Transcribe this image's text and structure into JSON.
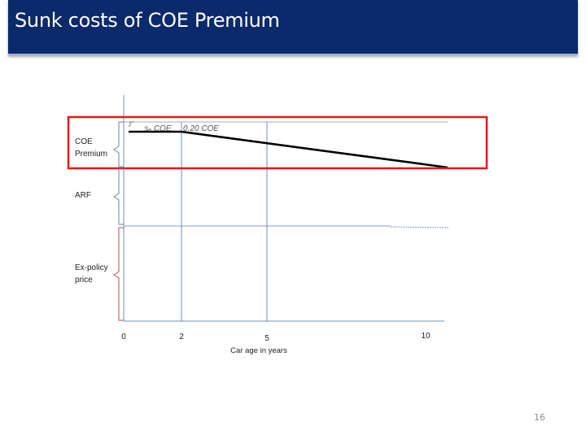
{
  "slide": {
    "title": "Sunk costs of COE Premium",
    "page_number": "16"
  },
  "colors": {
    "title_bg": "#0b2a6b",
    "title_text": "#ffffff",
    "axis": "#6e8fbf",
    "highlight_box": "#e81818",
    "price_line": "#000000",
    "brace_blue": "#5b86c3",
    "brace_red": "#c0504d"
  },
  "chart_data": {
    "type": "line",
    "title": "",
    "xlabel": "Car age in years",
    "ylabel": "",
    "x_ticks": [
      "0",
      "2",
      "5",
      "10"
    ],
    "xlim": [
      0,
      10
    ],
    "series": [
      {
        "x": [
          0,
          2,
          10
        ],
        "y": [
          1.0,
          1.0,
          0.0
        ]
      }
    ],
    "annotations": {
      "left_label": "sₐ COE",
      "right_label": "0.20 COE"
    },
    "brace_labels": [
      {
        "text": "COE Premium",
        "lines": [
          "COE",
          "Premium"
        ]
      },
      {
        "text": "ARF",
        "lines": [
          "ARF"
        ]
      },
      {
        "text": "Ex-policy price",
        "lines": [
          "Ex-policy",
          "price"
        ]
      }
    ],
    "vertical_markers": [
      2,
      5
    ],
    "highlight": "COE Premium band",
    "grid": false
  }
}
